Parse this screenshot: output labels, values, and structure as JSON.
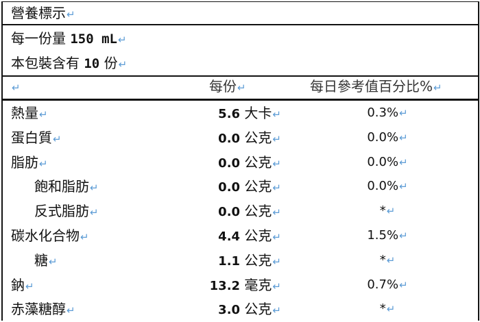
{
  "title": "營養標示",
  "serving_size_label": "每一份量",
  "serving_size_value": "150 mL",
  "servings_label_prefix": "本包裝含有",
  "servings_value": "10",
  "servings_label_suffix": "份",
  "columns": {
    "per_serving": "每份",
    "daily_value": "每日參考值百分比%"
  },
  "paragraph_mark": "↵",
  "rows": [
    {
      "name": "熱量",
      "value": "5.6",
      "unit": "大卡",
      "percent": "0.3%",
      "indent": false
    },
    {
      "name": "蛋白質",
      "value": "0.0",
      "unit": "公克",
      "percent": "0.0%",
      "indent": false
    },
    {
      "name": "脂肪",
      "value": "0.0",
      "unit": "公克",
      "percent": "0.0%",
      "indent": false
    },
    {
      "name": "飽和脂肪",
      "value": "0.0",
      "unit": "公克",
      "percent": "0.0%",
      "indent": true
    },
    {
      "name": "反式脂肪",
      "value": "0.0",
      "unit": "公克",
      "percent": "*",
      "indent": true
    },
    {
      "name": "碳水化合物",
      "value": "4.4",
      "unit": "公克",
      "percent": "1.5%",
      "indent": false
    },
    {
      "name": "糖",
      "value": "1.1",
      "unit": "公克",
      "percent": "*",
      "indent": true
    },
    {
      "name": "鈉",
      "value": "13.2",
      "unit": "毫克",
      "percent": "0.7%",
      "indent": false
    },
    {
      "name": "赤藻糖醇",
      "value": "3.0",
      "unit": "公克",
      "percent": "*",
      "indent": false
    }
  ]
}
